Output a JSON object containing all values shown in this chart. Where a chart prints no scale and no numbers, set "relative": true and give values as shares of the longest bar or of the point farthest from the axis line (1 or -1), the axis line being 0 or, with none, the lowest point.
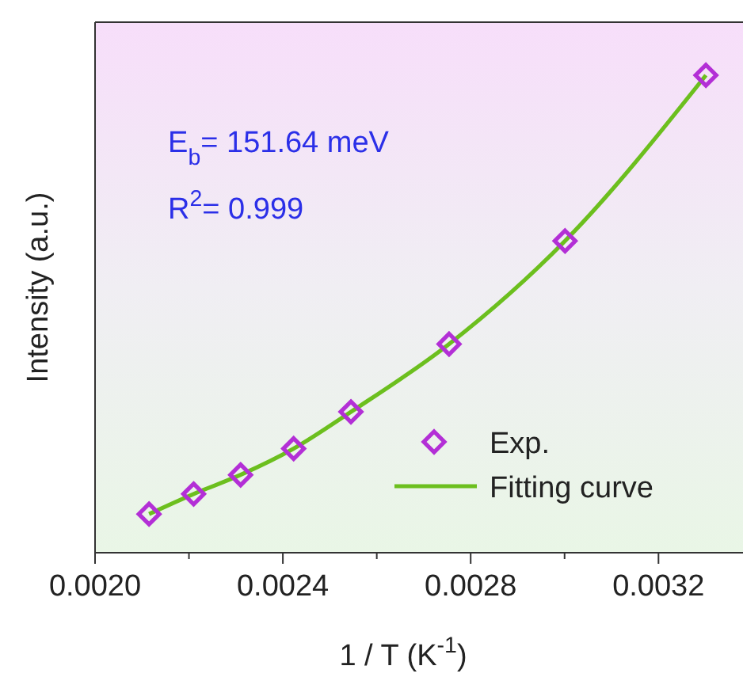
{
  "chart_data": {
    "type": "scatter",
    "xlabel": "1 / T (K$^{-1}$)",
    "ylabel": "Intensity (a.u.)",
    "relative": true,
    "xlim": [
      0.002,
      0.00338
    ],
    "xticks": [
      "0.0020",
      {
        "value": 0.0022,
        "label": null
      },
      {
        "value": 0.0024,
        "label": "0.0024"
      },
      {
        "value": 0.0026,
        "label": null
      },
      {
        "value": 0.0028,
        "label": "0.0028"
      },
      {
        "value": 0.003,
        "label": null
      },
      {
        "value": 0.0032,
        "label": "0.0032"
      }
    ],
    "annotations": [
      "E$_{b}$= 151.64 meV",
      "R$^{2}$= 0.999"
    ],
    "legend": "bottom right",
    "series": [
      {
        "name": "Exp.",
        "marker": "diamond",
        "color": "#b32fd6",
        "x": [
          0.002115,
          0.00221,
          0.00231,
          0.002423,
          0.002545,
          0.002754,
          0.003001,
          0.003301
        ],
        "values": [
          0.081,
          0.123,
          0.163,
          0.218,
          0.295,
          0.437,
          0.653,
          1
        ]
      },
      {
        "name": "Fitting curve",
        "type": "line",
        "marker": "none",
        "color": "#6cbf1e",
        "x": [
          0.002115,
          0.00221,
          0.00231,
          0.002423,
          0.002545,
          0.002754,
          0.003001,
          0.003301
        ],
        "values": [
          0.081,
          0.123,
          0.163,
          0.218,
          0.295,
          0.437,
          0.653,
          1
        ]
      }
    ]
  }
}
